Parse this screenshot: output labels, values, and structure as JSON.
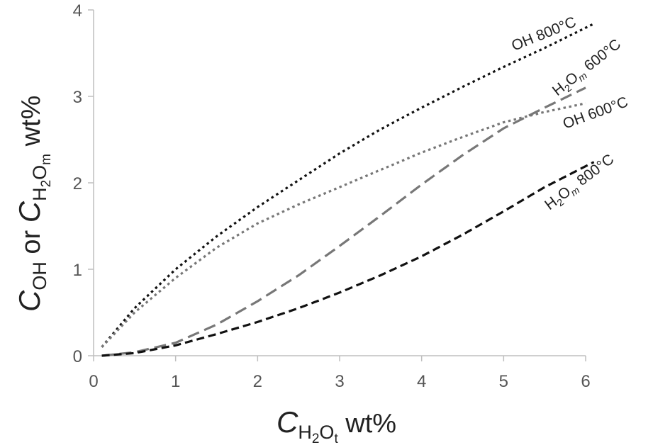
{
  "chart_data": {
    "type": "line",
    "xlabel": {
      "main": "C",
      "sub1": "H",
      "sub2": "2",
      "sub3": "O",
      "sub4": "t",
      "suffix": " wt%"
    },
    "ylabel": {
      "main": "C",
      "sub_oh": "OH",
      "mid": " or ",
      "main2": "C",
      "sub1": "H",
      "sub2": "2",
      "sub3": "O",
      "sub4": "m",
      "suffix": " wt%"
    },
    "xlim": [
      0,
      6
    ],
    "ylim": [
      0,
      4
    ],
    "x_ticks": [
      "0",
      "1",
      "2",
      "3",
      "4",
      "5",
      "6"
    ],
    "y_ticks": [
      "0",
      "1",
      "2",
      "3",
      "4"
    ],
    "series": [
      {
        "id": "oh800",
        "label": {
          "text": "OH 800°C"
        },
        "color": "#111111",
        "dash": "dotted",
        "x": [
          0.1,
          0.5,
          1.0,
          1.5,
          2.0,
          2.5,
          3.0,
          3.5,
          4.0,
          4.5,
          5.0,
          5.5,
          6.1
        ],
        "y": [
          0.1,
          0.55,
          1.0,
          1.38,
          1.72,
          2.03,
          2.34,
          2.62,
          2.87,
          3.11,
          3.34,
          3.56,
          3.84
        ]
      },
      {
        "id": "h2om600",
        "label": {
          "pre": "H",
          "sub1": "2",
          "mid": "O",
          "sub2": "m",
          "post": " 600°C"
        },
        "color": "#777777",
        "dash": "longdash",
        "x": [
          0.1,
          0.5,
          1.0,
          1.5,
          2.0,
          2.5,
          3.0,
          3.5,
          4.0,
          4.5,
          5.0,
          5.5,
          6.0
        ],
        "y": [
          0.0,
          0.04,
          0.15,
          0.36,
          0.63,
          0.93,
          1.27,
          1.62,
          1.98,
          2.32,
          2.63,
          2.87,
          3.1
        ]
      },
      {
        "id": "oh600",
        "label": {
          "text": "OH 600°C"
        },
        "color": "#777777",
        "dash": "dotted",
        "x": [
          0.1,
          0.5,
          1.0,
          1.5,
          2.0,
          2.5,
          3.0,
          3.5,
          4.0,
          4.5,
          5.0,
          5.5,
          6.0
        ],
        "y": [
          0.1,
          0.5,
          0.9,
          1.25,
          1.53,
          1.75,
          1.95,
          2.15,
          2.35,
          2.53,
          2.7,
          2.82,
          2.92
        ]
      },
      {
        "id": "h2om800",
        "label": {
          "pre": "H",
          "sub1": "2",
          "mid": "O",
          "sub2": "m",
          "post": " 800°C"
        },
        "color": "#111111",
        "dash": "dashed",
        "x": [
          0.1,
          0.5,
          1.0,
          1.5,
          2.0,
          2.5,
          3.0,
          3.5,
          4.0,
          4.5,
          5.0,
          5.5,
          6.1
        ],
        "y": [
          0.0,
          0.03,
          0.12,
          0.25,
          0.39,
          0.55,
          0.73,
          0.93,
          1.15,
          1.4,
          1.67,
          1.95,
          2.24
        ]
      }
    ]
  }
}
